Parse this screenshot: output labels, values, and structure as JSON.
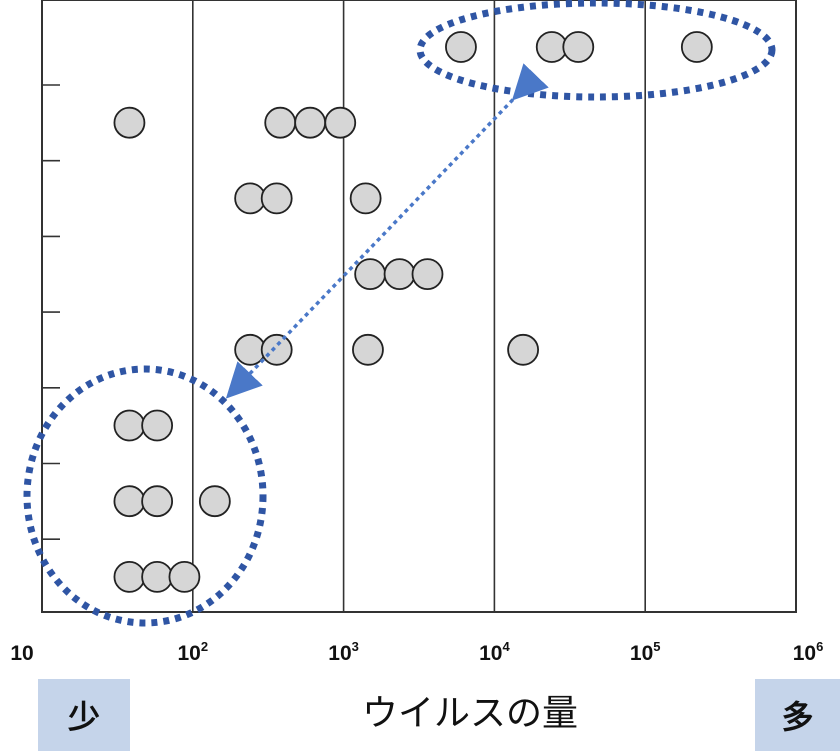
{
  "chart_data": {
    "type": "scatter",
    "x_scale": "log",
    "xlim": [
      10,
      1000000
    ],
    "ylim": [
      0.5,
      8.5
    ],
    "x_ticks": [
      {
        "value": 10,
        "base": "10",
        "exp": ""
      },
      {
        "value": 100,
        "base": "10",
        "exp": "2"
      },
      {
        "value": 1000,
        "base": "10",
        "exp": "3"
      },
      {
        "value": 10000,
        "base": "10",
        "exp": "4"
      },
      {
        "value": 100000,
        "base": "10",
        "exp": "5"
      },
      {
        "value": 1000000,
        "base": "10",
        "exp": "6"
      }
    ],
    "y_ticks": [
      1,
      2,
      3,
      4,
      5,
      6,
      7,
      8
    ],
    "xlabel": "ウイルスの量",
    "low_label": "少",
    "high_label": "多",
    "points": [
      {
        "x": 6000,
        "y": 8
      },
      {
        "x": 24000,
        "y": 8
      },
      {
        "x": 36000,
        "y": 8
      },
      {
        "x": 220000,
        "y": 8
      },
      {
        "x": 38,
        "y": 7
      },
      {
        "x": 380,
        "y": 7
      },
      {
        "x": 600,
        "y": 7
      },
      {
        "x": 950,
        "y": 7
      },
      {
        "x": 240,
        "y": 6
      },
      {
        "x": 360,
        "y": 6
      },
      {
        "x": 1400,
        "y": 6
      },
      {
        "x": 1500,
        "y": 5
      },
      {
        "x": 2350,
        "y": 5
      },
      {
        "x": 3600,
        "y": 5
      },
      {
        "x": 240,
        "y": 4
      },
      {
        "x": 360,
        "y": 4
      },
      {
        "x": 1450,
        "y": 4
      },
      {
        "x": 15500,
        "y": 4
      },
      {
        "x": 38,
        "y": 3
      },
      {
        "x": 58,
        "y": 3
      },
      {
        "x": 38,
        "y": 2
      },
      {
        "x": 58,
        "y": 2
      },
      {
        "x": 140,
        "y": 2
      },
      {
        "x": 38,
        "y": 1
      },
      {
        "x": 58,
        "y": 1
      },
      {
        "x": 88,
        "y": 1
      }
    ],
    "colors": {
      "point_fill": "#d6d6d6",
      "point_stroke": "#222222",
      "annotation": "#2f55a4",
      "arrow": "#4a78c8",
      "label_box": "#c5d4ea"
    }
  }
}
